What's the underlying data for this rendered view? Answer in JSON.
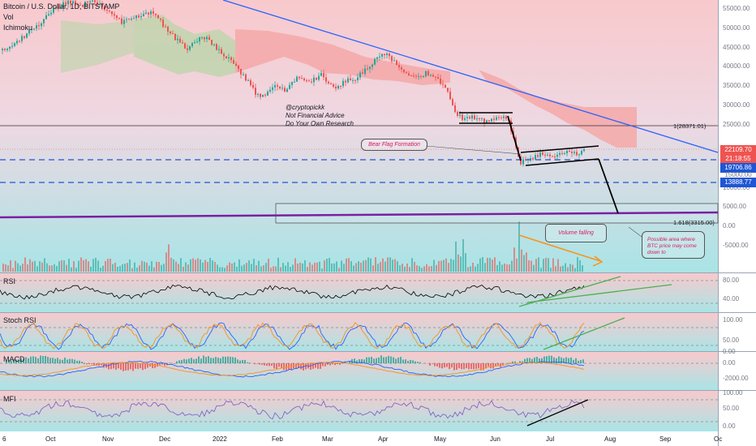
{
  "header": {
    "symbol": "Bitcoin / U.S. Dollar, 1D, BITSTAMP",
    "vol_label": "Vol",
    "ichimoku_label": "Ichimoku"
  },
  "panes": {
    "rsi_label": "RSI",
    "stoch_label": "Stoch RSI",
    "macd_label": "MACD",
    "mfi_label": "MFI"
  },
  "annotations": {
    "author": "@cryptopickk",
    "disclaimer1": "Not Financial Advice",
    "disclaimer2": "Do Your Own Research",
    "bear_flag": "Bear Flag Formation",
    "volume_falling": "Volume falling",
    "possible_area": [
      "Possible area where",
      "BTC price may come",
      "down to"
    ],
    "fib1": "1(28371.01)",
    "fib1618": "1.618(3315.00)"
  },
  "price_tags": {
    "current_price": "22109.70",
    "countdown": "21:18:55",
    "support1": "19706.86",
    "support2": "13888.77",
    "partial": "15000.00"
  },
  "colors": {
    "trendline": "#2962ff",
    "purple_line": "#7b1fa2",
    "up": "#26a69a",
    "down": "#ef5350",
    "cloud_bear": "#f4a8a8",
    "cloud_bull": "#b8d6a8",
    "green_trend": "#4caf50",
    "dashed_support": "#1e56d6"
  },
  "chart_data": [
    {
      "type": "line",
      "name": "price",
      "title": "Bitcoin / U.S. Dollar, 1D, BITSTAMP",
      "x_ticks": [
        "6",
        "Oct",
        "Nov",
        "Dec",
        "2022",
        "Feb",
        "Mar",
        "Apr",
        "May",
        "Jun",
        "Jul",
        "Aug",
        "Sep",
        "Oc"
      ],
      "y_ticks": [
        "55000.00",
        "50000.00",
        "45000.00",
        "40000.00",
        "35000.00",
        "30000.00",
        "25000.00",
        "10000.00",
        "5000.00",
        "0.00",
        "-5000.00"
      ],
      "close_approx": [
        47000,
        48500,
        53000,
        61000,
        66000,
        64000,
        58000,
        57000,
        51000,
        47000,
        48000,
        43000,
        38000,
        37000,
        43000,
        39000,
        41000,
        39000,
        45000,
        47000,
        46000,
        40000,
        38000,
        36000,
        30500,
        30000,
        29500,
        30000,
        21000,
        20000,
        21000,
        20500,
        22100
      ],
      "levels": [
        28371.01,
        22109.7,
        19706.86,
        13888.77,
        3315.0
      ]
    },
    {
      "type": "line",
      "name": "RSI",
      "y_ticks": [
        "80.00",
        "40.00"
      ]
    },
    {
      "type": "line",
      "name": "Stoch RSI",
      "y_ticks": [
        "100.00",
        "50.00",
        "0.00"
      ]
    },
    {
      "type": "bar",
      "name": "MACD",
      "y_ticks": [
        "0.00",
        "-2000.00"
      ]
    },
    {
      "type": "line",
      "name": "MFI",
      "y_ticks": [
        "100.00",
        "50.00",
        "0.00"
      ]
    }
  ]
}
